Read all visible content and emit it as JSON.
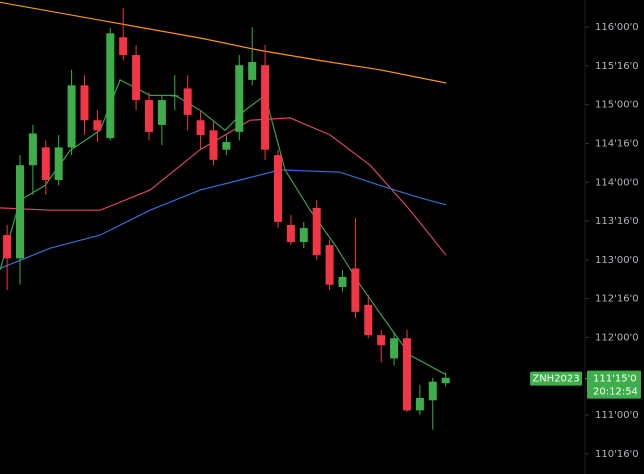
{
  "chart_data": {
    "type": "candlestick",
    "symbol": "ZNH2023",
    "countdown": "20:12:54",
    "last_price": {
      "value": 111.46875,
      "label": "111'15'0"
    },
    "up_color": "#3dae4a",
    "down_color": "#f23645",
    "xlim": [
      -0.55,
      44.8
    ],
    "ylim": [
      110.24,
      116.35
    ],
    "yticks": [
      {
        "value": 116,
        "label": "116'00'0"
      },
      {
        "value": 115.5,
        "label": "115'16'0"
      },
      {
        "value": 115,
        "label": "115'00'0"
      },
      {
        "value": 114.5,
        "label": "114'16'0"
      },
      {
        "value": 114,
        "label": "114'00'0"
      },
      {
        "value": 113.5,
        "label": "113'16'0"
      },
      {
        "value": 113,
        "label": "113'00'0"
      },
      {
        "value": 112.5,
        "label": "112'16'0"
      },
      {
        "value": 112,
        "label": "112'00'0"
      },
      {
        "value": 111,
        "label": "111'00'0"
      },
      {
        "value": 110.5,
        "label": "110'16'0"
      }
    ],
    "x": [
      0,
      1,
      2,
      3,
      4,
      5,
      6,
      7,
      8,
      9,
      10,
      11,
      12,
      13,
      14,
      15,
      16,
      17,
      18,
      19,
      20,
      21,
      22,
      23,
      24,
      25,
      26,
      27,
      28,
      29,
      30,
      31,
      32,
      33,
      34
    ],
    "open": [
      113.32,
      113.02,
      114.22,
      114.45,
      114.03,
      114.45,
      115.25,
      114.8,
      114.57,
      115.87,
      115.64,
      115.06,
      114.74,
      115.11,
      115.21,
      114.8,
      114.67,
      114.42,
      114.65,
      115.32,
      115.51,
      114.35,
      113.45,
      113.23,
      113.67,
      113.19,
      112.65,
      112.89,
      112.42,
      112.03,
      111.73,
      111.99,
      111.06,
      111.19,
      111.41
    ],
    "high": [
      113.45,
      114.35,
      114.74,
      114.54,
      114.61,
      115.45,
      115.38,
      114.93,
      115.99,
      116.25,
      115.77,
      115.16,
      115.12,
      115.38,
      115.38,
      114.93,
      114.78,
      114.61,
      115.64,
      116.0,
      115.77,
      114.42,
      113.58,
      113.49,
      113.77,
      113.26,
      112.87,
      113.54,
      112.55,
      112.1,
      112.07,
      112.1,
      111.39,
      111.48,
      111.55
    ],
    "low": [
      112.61,
      112.68,
      113.84,
      113.84,
      113.96,
      114.35,
      114.61,
      114.52,
      114.54,
      115.57,
      114.93,
      114.54,
      114.48,
      114.93,
      114.67,
      114.42,
      114.22,
      114.35,
      114.54,
      115.25,
      114.29,
      113.41,
      113.19,
      113.15,
      113.0,
      112.61,
      112.59,
      112.25,
      111.99,
      111.68,
      111.64,
      111.04,
      111.0,
      110.81,
      111.37
    ],
    "close": [
      113.02,
      114.22,
      114.63,
      114.03,
      114.45,
      115.25,
      114.8,
      114.67,
      115.92,
      115.64,
      115.06,
      114.65,
      115.06,
      115.12,
      114.87,
      114.61,
      114.29,
      114.52,
      115.51,
      115.55,
      114.42,
      113.49,
      113.23,
      113.41,
      113.06,
      112.68,
      112.78,
      112.33,
      112.03,
      111.9,
      111.99,
      111.06,
      111.22,
      111.43,
      111.48
    ],
    "series": [
      {
        "color": "#f7931a",
        "x": [
          -0.54,
          7.21,
          14.96,
          19.61,
          24.26,
          28.91,
          34.03
        ],
        "values": [
          116.32,
          116.09,
          115.86,
          115.7,
          115.57,
          115.45,
          115.28
        ]
      },
      {
        "color": "#d9455f",
        "x": [
          -0.54,
          3.33,
          7.21,
          11.08,
          14.96,
          18.84,
          21.94,
          25.04,
          28.14,
          31.24,
          34.03
        ],
        "values": [
          113.67,
          113.64,
          113.64,
          113.9,
          114.42,
          114.8,
          114.83,
          114.61,
          114.22,
          113.64,
          113.06
        ]
      },
      {
        "color": "#2f6fd0",
        "x": [
          -0.54,
          3.33,
          7.21,
          11.08,
          14.96,
          18.06,
          21.16,
          25.81,
          28.91,
          32.01,
          34.03
        ],
        "values": [
          112.89,
          113.15,
          113.32,
          113.64,
          113.9,
          114.03,
          114.16,
          114.13,
          113.96,
          113.8,
          113.71
        ]
      },
      {
        "color": "#3b9f4a",
        "x": [
          -0.54,
          1.01,
          2.95,
          4.88,
          7.21,
          8.76,
          11.08,
          13.02,
          14.96,
          16.9,
          18.45,
          20.0,
          21.55,
          23.49,
          25.43,
          27.36,
          29.3,
          31.24,
          34.03
        ],
        "values": [
          112.87,
          113.77,
          113.96,
          114.41,
          114.67,
          115.32,
          115.12,
          115.12,
          114.93,
          114.67,
          114.93,
          115.12,
          114.16,
          113.64,
          113.19,
          112.68,
          112.22,
          111.77,
          111.52
        ]
      }
    ]
  }
}
